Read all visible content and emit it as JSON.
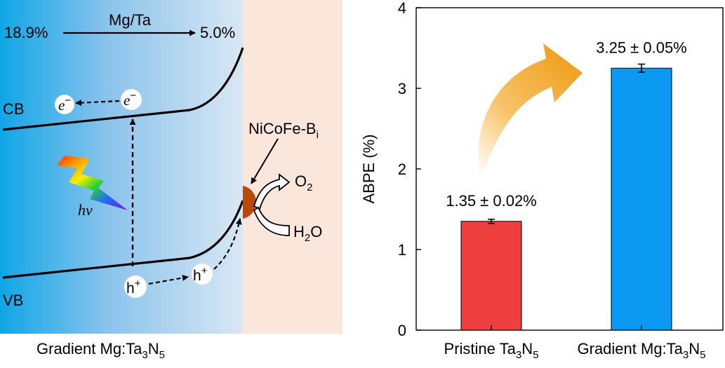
{
  "colors": {
    "gradient_dark": "#0fa6e6",
    "gradient_light": "#d9e7f4",
    "surface_bg": "#fbe6dc",
    "bar_pristine": "#ee3e3e",
    "bar_gradient": "#0a9af2",
    "arrow_orange": "#f0a020",
    "cocatalyst": "#b84a06"
  },
  "schematic": {
    "mg_ta_label": "Mg/Ta",
    "ratio_left": "18.9%",
    "ratio_right": "5.0%",
    "cb_label": "CB",
    "vb_label": "VB",
    "electron": "e",
    "electron_charge": "−",
    "hole": "h",
    "hole_charge": "+",
    "photon_label": "hν",
    "cocatalyst_main": "NiCoFe-B",
    "cocatalyst_sub": "i",
    "o2_main": "O",
    "o2_sub": "2",
    "h2o_main": "H",
    "h2o_sub": "2",
    "h2o_end": "O",
    "caption_main": "Gradient Mg:Ta",
    "caption_sub1": "3",
    "caption_n": "N",
    "caption_sub2": "5"
  },
  "chart_data": {
    "type": "bar",
    "title": "",
    "xlabel": "",
    "ylabel": "ABPE (%)",
    "ylim": [
      0,
      4
    ],
    "yticks": [
      "0",
      "1",
      "2",
      "3",
      "4"
    ],
    "categories": [
      {
        "main": "Pristine Ta",
        "sub1": "3",
        "n": "N",
        "sub2": "5"
      },
      {
        "main": "Gradient Mg:Ta",
        "sub1": "3",
        "n": "N",
        "sub2": "5"
      }
    ],
    "values": [
      1.35,
      3.25
    ],
    "errors": [
      0.02,
      0.05
    ],
    "data_labels": [
      "1.35 ± 0.02%",
      "3.25 ± 0.05%"
    ]
  }
}
